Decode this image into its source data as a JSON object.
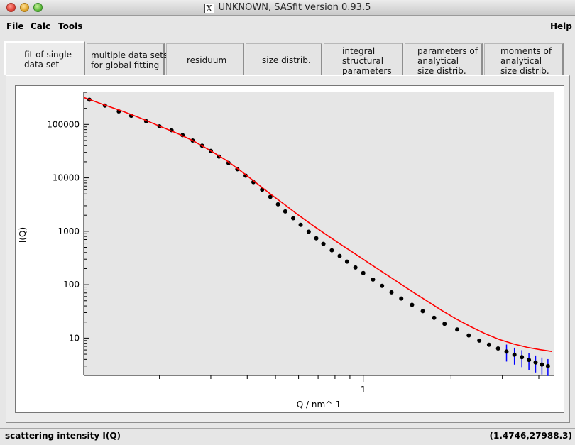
{
  "window": {
    "title": "UNKNOWN, SASfit version 0.93.5",
    "x_logo": "X"
  },
  "menu": {
    "file": "File",
    "calc": "Calc",
    "tools": "Tools",
    "help": "Help"
  },
  "tabs": [
    {
      "lines": [
        "fit of single",
        "data set"
      ]
    },
    {
      "lines": [
        "multiple data sets",
        "for global fitting"
      ]
    },
    {
      "lines": [
        "residuum"
      ]
    },
    {
      "lines": [
        "size distrib."
      ]
    },
    {
      "lines": [
        "integral",
        "structural",
        "parameters"
      ]
    },
    {
      "lines": [
        "parameters of",
        "analytical",
        "size distrib."
      ]
    },
    {
      "lines": [
        "moments of",
        "analytical",
        "size distrib."
      ]
    }
  ],
  "status": {
    "left": "scattering intensity I(Q)",
    "right": "(1.4746,27988.3)"
  },
  "colors": {
    "plot_background": "#e6e6e6",
    "data_points": "#000000",
    "error_bars": "#0000ff",
    "fit_line": "#ff0000"
  },
  "chart_data": {
    "type": "scatter",
    "title": "",
    "xlabel": "Q / nm^-1",
    "ylabel": "I(Q)",
    "xscale": "log",
    "yscale": "log",
    "xlim": [
      0.11,
      4.5
    ],
    "ylim": [
      2,
      400000
    ],
    "x_tick_labels": [
      "1"
    ],
    "y_tick_labels": [
      "10",
      "100",
      "1000",
      "10000",
      "100000"
    ],
    "grid": false,
    "legend": "none",
    "series": [
      {
        "kind": "data with error bars",
        "x": [
          0.115,
          0.13,
          0.145,
          0.16,
          0.18,
          0.2,
          0.22,
          0.24,
          0.26,
          0.28,
          0.3,
          0.32,
          0.345,
          0.37,
          0.395,
          0.42,
          0.45,
          0.48,
          0.51,
          0.54,
          0.575,
          0.61,
          0.65,
          0.69,
          0.73,
          0.78,
          0.83,
          0.88,
          0.94,
          1.0,
          1.08,
          1.16,
          1.25,
          1.35,
          1.47,
          1.6,
          1.75,
          1.9,
          2.1,
          2.3,
          2.5,
          2.7,
          2.9,
          3.1,
          3.3,
          3.5,
          3.7,
          3.9,
          4.1,
          4.3
        ],
        "y": [
          290000,
          225000,
          175000,
          145000,
          115000,
          92000,
          78000,
          63000,
          50000,
          40000,
          32000,
          25000,
          19000,
          14500,
          11000,
          8300,
          6000,
          4400,
          3200,
          2350,
          1750,
          1320,
          980,
          740,
          580,
          440,
          345,
          270,
          210,
          165,
          125,
          95,
          72,
          55,
          42,
          32,
          24,
          18.5,
          14.5,
          11.2,
          9.0,
          7.5,
          6.4,
          5.6,
          4.9,
          4.4,
          3.9,
          3.5,
          3.2,
          3.0
        ]
      },
      {
        "kind": "fit line",
        "x": [
          0.11,
          0.13,
          0.15,
          0.17,
          0.2,
          0.23,
          0.26,
          0.3,
          0.34,
          0.38,
          0.43,
          0.48,
          0.54,
          0.6,
          0.67,
          0.75,
          0.84,
          0.94,
          1.05,
          1.18,
          1.32,
          1.48,
          1.66,
          1.86,
          2.08,
          2.33,
          2.61,
          2.92,
          3.27,
          3.66,
          4.1,
          4.45
        ],
        "y": [
          320000,
          230000,
          175000,
          135000,
          93000,
          68000,
          50000,
          32000,
          21000,
          13500,
          8000,
          5000,
          3100,
          2000,
          1300,
          850,
          560,
          375,
          250,
          165,
          110,
          73,
          49,
          33,
          23,
          16.5,
          12.2,
          9.5,
          7.8,
          6.7,
          6.0,
          5.6
        ]
      }
    ]
  }
}
